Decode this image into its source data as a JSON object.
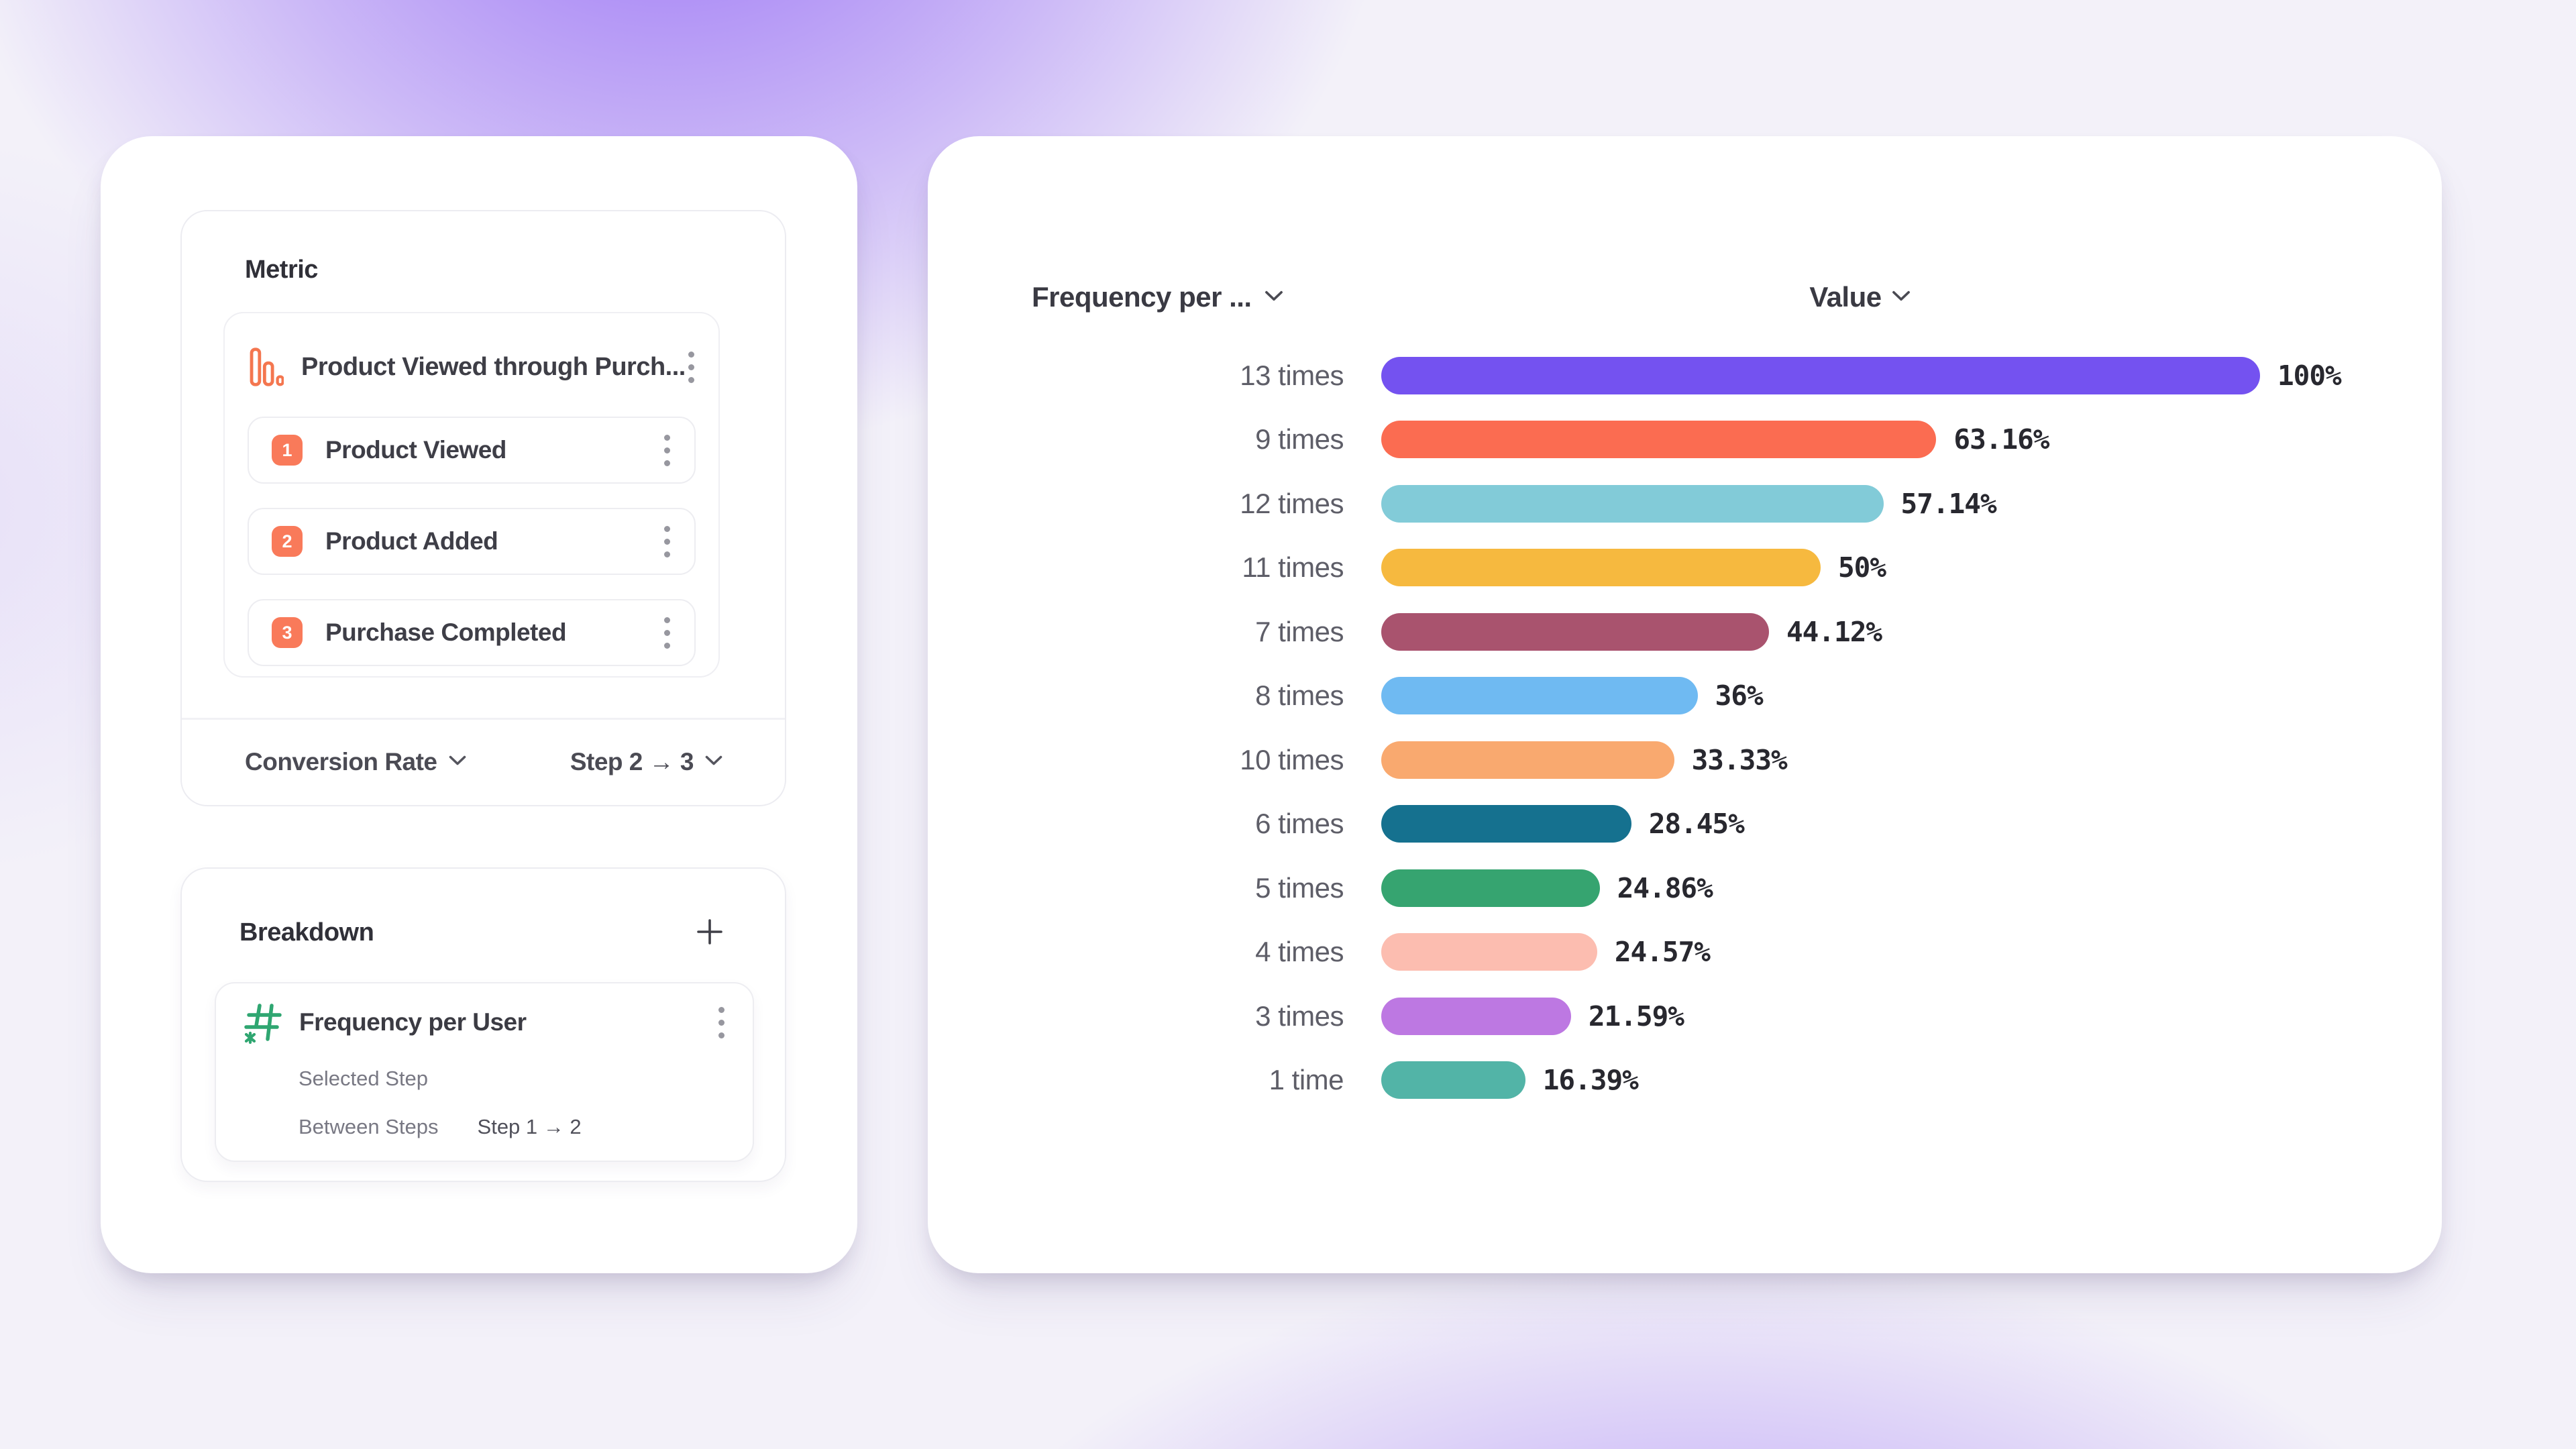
{
  "colors": {
    "accent_coral": "#F97A5A",
    "icon_green": "#2FA671",
    "card_bg": "#FFFFFF",
    "background_glow": "#8A5CF4",
    "text_dark": "#303038",
    "text_gray": "#787883"
  },
  "left_panel": {
    "metric_section": {
      "title": "Metric",
      "funnel": {
        "name": "Product Viewed through Purch...",
        "steps": [
          {
            "number": "1",
            "label": "Product Viewed"
          },
          {
            "number": "2",
            "label": "Product Added"
          },
          {
            "number": "3",
            "label": "Purchase Completed"
          }
        ]
      },
      "measurement_label": "Conversion Rate",
      "step_range_label": "Step 2 → 3"
    },
    "breakdown_section": {
      "title": "Breakdown",
      "item": {
        "name": "Frequency per User",
        "property_label": "Selected Step",
        "between_label": "Between Steps",
        "between_value": "Step 1 → 2"
      }
    }
  },
  "chart_data": {
    "type": "bar",
    "orientation": "horizontal",
    "category_header": "Frequency per ...",
    "value_header": "Value",
    "categories": [
      "13 times",
      "9 times",
      "12 times",
      "11 times",
      "7 times",
      "8 times",
      "10 times",
      "6 times",
      "5 times",
      "4 times",
      "3 times",
      "1 time"
    ],
    "values": [
      100,
      63.16,
      57.14,
      50,
      44.12,
      36,
      33.33,
      28.45,
      24.86,
      24.57,
      21.59,
      16.39
    ],
    "value_labels": [
      "100%",
      "63.16%",
      "57.14%",
      "50%",
      "44.12%",
      "36%",
      "33.33%",
      "28.45%",
      "24.86%",
      "24.57%",
      "21.59%",
      "16.39%"
    ],
    "bar_colors": [
      "#7452F0",
      "#FB6C51",
      "#82CBD8",
      "#F6B93F",
      "#A9536E",
      "#6FBAF2",
      "#F9A96F",
      "#15718F",
      "#36A470",
      "#FCBDB0",
      "#BD78E2",
      "#52B4A7"
    ],
    "xlim": [
      0,
      100
    ],
    "title": "",
    "xlabel": "",
    "ylabel": ""
  }
}
